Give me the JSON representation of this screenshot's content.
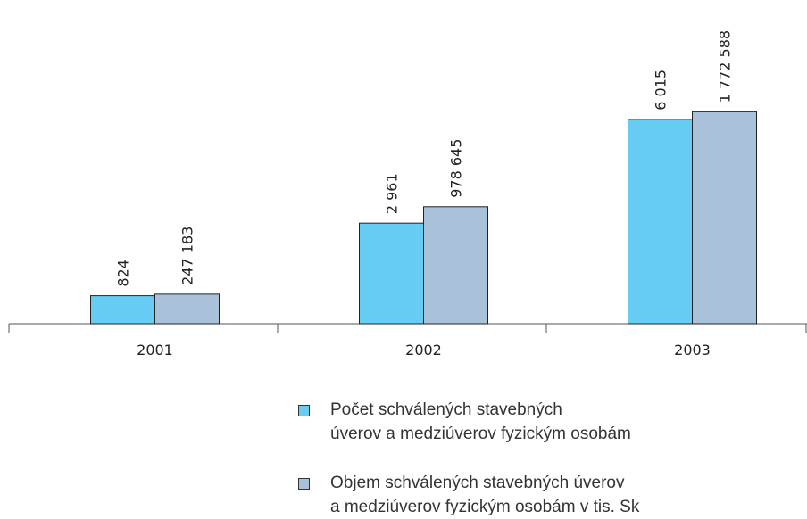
{
  "chart_data": {
    "type": "bar",
    "categories": [
      "2001",
      "2002",
      "2003"
    ],
    "series": [
      {
        "name": "Počet schválených stavebných\núverov a medziúverov fyzickým osobám",
        "color": "#66ccf4",
        "values": [
          824,
          2961,
          6015
        ],
        "value_labels": [
          "824",
          "2 961",
          "6 015"
        ]
      },
      {
        "name": "Objem schválených stavebných úverov\na medziúverov fyzickým osobám v tis. Sk",
        "color": "#a9c1d9",
        "values": [
          247183,
          978645,
          1772588
        ],
        "value_labels": [
          "247 183",
          "978 645",
          "1 772 588"
        ],
        "axis": "y2"
      }
    ],
    "ylim": [
      0,
      9500
    ],
    "y2lim": [
      0,
      2700000
    ]
  }
}
